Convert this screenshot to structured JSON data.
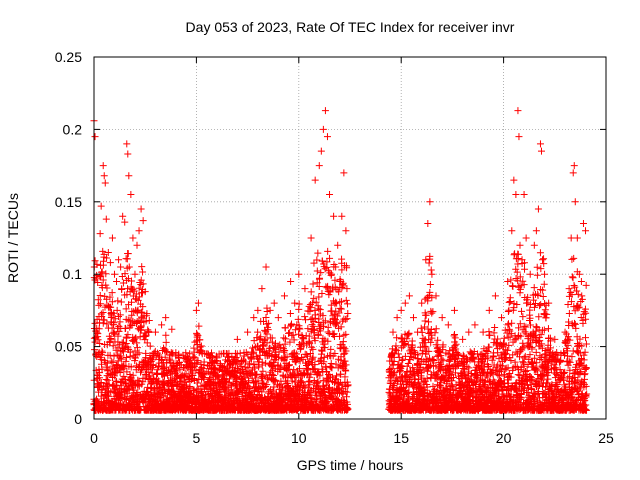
{
  "chart_data": {
    "type": "scatter",
    "title": "Day 053 of 2023, Rate Of TEC Index for receiver invr",
    "xlabel": "GPS time / hours",
    "ylabel": "ROTI / TECUs",
    "xlim": [
      0,
      25
    ],
    "ylim": [
      0,
      0.25
    ],
    "xticks": [
      0,
      5,
      10,
      15,
      20,
      25
    ],
    "yticks": [
      0,
      0.05,
      0.1,
      0.15,
      0.2,
      0.25
    ],
    "xtick_labels": [
      "0",
      "5",
      "10",
      "15",
      "20",
      "25"
    ],
    "ytick_labels": [
      "0",
      "0.05",
      "0.1",
      "0.15",
      "0.2",
      "0.25"
    ],
    "grid": true,
    "marker": "+",
    "color": "#ff0000",
    "data_gap_hours": [
      12.4,
      14.4
    ],
    "series": [
      {
        "name": "ROTI",
        "points": [
          [
            0.0,
            0.206
          ],
          [
            0.05,
            0.195
          ],
          [
            0.05,
            0.066
          ],
          [
            0.1,
            0.045
          ],
          [
            0.2,
            0.03
          ],
          [
            0.3,
            0.128
          ],
          [
            0.35,
            0.147
          ],
          [
            0.45,
            0.175
          ],
          [
            0.5,
            0.168
          ],
          [
            0.55,
            0.163
          ],
          [
            0.6,
            0.138
          ],
          [
            0.7,
            0.115
          ],
          [
            0.8,
            0.108
          ],
          [
            0.9,
            0.125
          ],
          [
            1.0,
            0.1
          ],
          [
            1.1,
            0.095
          ],
          [
            1.2,
            0.11
          ],
          [
            1.3,
            0.105
          ],
          [
            1.4,
            0.14
          ],
          [
            1.5,
            0.136
          ],
          [
            1.6,
            0.19
          ],
          [
            1.65,
            0.183
          ],
          [
            1.7,
            0.168
          ],
          [
            1.8,
            0.155
          ],
          [
            1.9,
            0.125
          ],
          [
            2.0,
            0.1
          ],
          [
            2.1,
            0.12
          ],
          [
            2.2,
            0.13
          ],
          [
            2.3,
            0.145
          ],
          [
            2.4,
            0.137
          ],
          [
            2.5,
            0.088
          ],
          [
            2.7,
            0.068
          ],
          [
            3.0,
            0.06
          ],
          [
            3.3,
            0.065
          ],
          [
            3.5,
            0.07
          ],
          [
            3.8,
            0.062
          ],
          [
            4.0,
            0.035
          ],
          [
            4.5,
            0.04
          ],
          [
            5.0,
            0.075
          ],
          [
            5.1,
            0.08
          ],
          [
            5.5,
            0.045
          ],
          [
            6.0,
            0.04
          ],
          [
            6.5,
            0.045
          ],
          [
            7.0,
            0.055
          ],
          [
            7.5,
            0.06
          ],
          [
            7.8,
            0.07
          ],
          [
            8.0,
            0.075
          ],
          [
            8.2,
            0.09
          ],
          [
            8.4,
            0.105
          ],
          [
            8.6,
            0.075
          ],
          [
            8.8,
            0.08
          ],
          [
            9.0,
            0.07
          ],
          [
            9.3,
            0.085
          ],
          [
            9.6,
            0.095
          ],
          [
            9.8,
            0.08
          ],
          [
            10.0,
            0.1
          ],
          [
            10.3,
            0.09
          ],
          [
            10.6,
            0.125
          ],
          [
            10.8,
            0.165
          ],
          [
            11.0,
            0.175
          ],
          [
            11.1,
            0.185
          ],
          [
            11.2,
            0.2
          ],
          [
            11.3,
            0.213
          ],
          [
            11.4,
            0.195
          ],
          [
            11.5,
            0.155
          ],
          [
            11.6,
            0.1
          ],
          [
            11.7,
            0.14
          ],
          [
            11.8,
            0.105
          ],
          [
            11.9,
            0.12
          ],
          [
            12.0,
            0.095
          ],
          [
            12.1,
            0.14
          ],
          [
            12.2,
            0.17
          ],
          [
            12.3,
            0.13
          ],
          [
            12.35,
            0.09
          ],
          [
            14.5,
            0.035
          ],
          [
            14.6,
            0.06
          ],
          [
            14.8,
            0.07
          ],
          [
            15.0,
            0.075
          ],
          [
            15.2,
            0.08
          ],
          [
            15.4,
            0.085
          ],
          [
            15.6,
            0.07
          ],
          [
            15.8,
            0.06
          ],
          [
            16.0,
            0.08
          ],
          [
            16.2,
            0.11
          ],
          [
            16.3,
            0.135
          ],
          [
            16.4,
            0.15
          ],
          [
            16.5,
            0.1
          ],
          [
            16.7,
            0.085
          ],
          [
            17.0,
            0.07
          ],
          [
            17.3,
            0.065
          ],
          [
            17.6,
            0.075
          ],
          [
            18.0,
            0.055
          ],
          [
            18.3,
            0.06
          ],
          [
            18.6,
            0.065
          ],
          [
            19.0,
            0.06
          ],
          [
            19.3,
            0.075
          ],
          [
            19.6,
            0.085
          ],
          [
            19.9,
            0.07
          ],
          [
            20.2,
            0.095
          ],
          [
            20.4,
            0.13
          ],
          [
            20.5,
            0.165
          ],
          [
            20.6,
            0.155
          ],
          [
            20.7,
            0.213
          ],
          [
            20.75,
            0.195
          ],
          [
            20.8,
            0.12
          ],
          [
            20.9,
            0.11
          ],
          [
            21.0,
            0.155
          ],
          [
            21.1,
            0.125
          ],
          [
            21.3,
            0.1
          ],
          [
            21.5,
            0.12
          ],
          [
            21.6,
            0.13
          ],
          [
            21.7,
            0.145
          ],
          [
            21.8,
            0.19
          ],
          [
            21.85,
            0.185
          ],
          [
            21.9,
            0.11
          ],
          [
            22.0,
            0.1
          ],
          [
            22.2,
            0.08
          ],
          [
            22.5,
            0.055
          ],
          [
            22.8,
            0.045
          ],
          [
            23.0,
            0.06
          ],
          [
            23.2,
            0.09
          ],
          [
            23.3,
            0.125
          ],
          [
            23.4,
            0.17
          ],
          [
            23.45,
            0.175
          ],
          [
            23.5,
            0.15
          ],
          [
            23.6,
            0.125
          ],
          [
            23.7,
            0.1
          ],
          [
            23.8,
            0.095
          ],
          [
            23.9,
            0.135
          ],
          [
            24.0,
            0.13
          ]
        ]
      }
    ]
  }
}
